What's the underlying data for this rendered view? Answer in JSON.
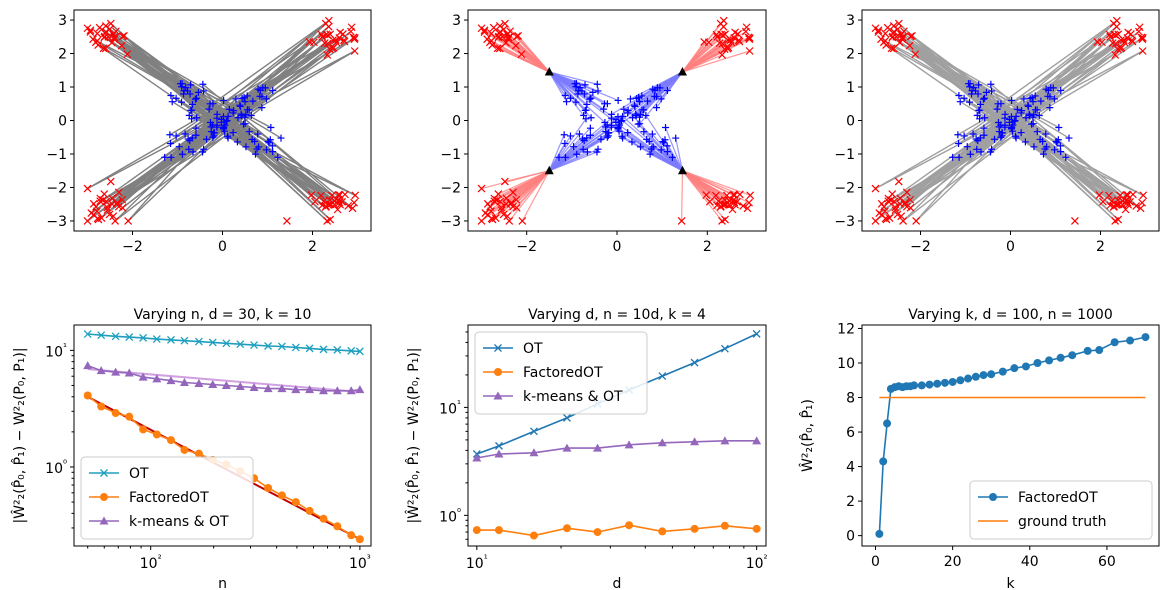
{
  "chart_data": [
    {
      "type": "scatter",
      "variant": "matching-lines",
      "xlim": [
        -3.3,
        3.3
      ],
      "ylim": [
        -3.3,
        3.3
      ],
      "xticks": [
        -2,
        0,
        2
      ],
      "yticks": [
        -3,
        -2,
        -1,
        0,
        1,
        2,
        3
      ],
      "xtick_labels": [
        "−2",
        "0",
        "2"
      ],
      "ytick_labels": [
        "−3",
        "−2",
        "−1",
        "0",
        "1",
        "2",
        "3"
      ],
      "line_color": "#808080",
      "source_color": "#0000ff",
      "target_color": "#ff0000",
      "anchors": [],
      "note": "blue '+' points near origin; red 'x' points in four corner clusters; each source matched to a corner point"
    },
    {
      "type": "scatter",
      "variant": "factored-lines",
      "xlim": [
        -3.3,
        3.3
      ],
      "ylim": [
        -3.3,
        3.3
      ],
      "xticks": [
        -2,
        0,
        2
      ],
      "yticks": [
        -3,
        -2,
        -1,
        0,
        1,
        2,
        3
      ],
      "xtick_labels": [
        "−2",
        "0",
        "2"
      ],
      "ytick_labels": [
        "−3",
        "−2",
        "−1",
        "0",
        "1",
        "2",
        "3"
      ],
      "line_color": "#7b7bff",
      "target_line_color": "#ff8080",
      "source_color": "#0000ff",
      "target_color": "#ff0000",
      "anchors": [
        [
          -1.5,
          1.45
        ],
        [
          1.45,
          1.45
        ],
        [
          -1.5,
          -1.5
        ],
        [
          1.45,
          -1.5
        ]
      ]
    },
    {
      "type": "scatter",
      "variant": "matching-lines-alt",
      "xlim": [
        -3.3,
        3.3
      ],
      "ylim": [
        -3.3,
        3.3
      ],
      "xticks": [
        -2,
        0,
        2
      ],
      "yticks": [
        -3,
        -2,
        -1,
        0,
        1,
        2,
        3
      ],
      "xtick_labels": [
        "−2",
        "0",
        "2"
      ],
      "ytick_labels": [
        "−3",
        "−2",
        "−1",
        "0",
        "1",
        "2",
        "3"
      ],
      "line_color": "#a0a0a0",
      "source_color": "#0000ff",
      "target_color": "#ff0000",
      "anchors": []
    },
    {
      "type": "line",
      "scale": "loglog",
      "title": "Varying n, d = 30, k = 10",
      "xlabel": "n",
      "ylabel": "|Ŵ²₂(P̂₀, P̂₁) − W²₂(P₀, P₁)|",
      "xlim": [
        43,
        1130
      ],
      "ylim": [
        0.21,
        16.5
      ],
      "xticks": [
        100,
        1000
      ],
      "xtick_labels": [
        "10²",
        "10³"
      ],
      "yticks": [
        1,
        10
      ],
      "ytick_labels": [
        "10⁰",
        "10¹"
      ],
      "legend_position": "lower-left",
      "x": [
        50,
        58,
        68,
        79,
        92,
        107,
        125,
        145,
        170,
        198,
        230,
        268,
        312,
        364,
        424,
        494,
        575,
        670,
        780,
        909,
        1000
      ],
      "series": [
        {
          "name": "OT",
          "color": "#1f9fbf",
          "marker": "x",
          "values": [
            13.8,
            13.5,
            13.2,
            13.0,
            12.8,
            12.5,
            12.3,
            12.1,
            11.9,
            11.7,
            11.5,
            11.3,
            11.1,
            10.9,
            10.8,
            10.6,
            10.4,
            10.2,
            10.1,
            9.9,
            9.8
          ]
        },
        {
          "name": "FactoredOT",
          "color": "#ff7f0e",
          "marker": "o",
          "values": [
            4.1,
            3.3,
            2.9,
            2.7,
            2.1,
            1.9,
            1.7,
            1.4,
            1.3,
            1.15,
            1.05,
            0.92,
            0.8,
            0.66,
            0.57,
            0.5,
            0.42,
            0.36,
            0.31,
            0.26,
            0.24
          ]
        },
        {
          "name": "k-means & OT",
          "color": "#9467bd",
          "marker": "^",
          "values": [
            7.4,
            6.7,
            6.5,
            6.4,
            5.9,
            5.7,
            5.5,
            5.3,
            5.2,
            5.1,
            5.0,
            4.9,
            4.8,
            4.7,
            4.7,
            4.6,
            4.6,
            4.5,
            4.5,
            4.5,
            4.6
          ]
        }
      ],
      "fit_lines": [
        {
          "color": "#c00000",
          "values": [
            4.0,
            0.24
          ]
        },
        {
          "color": "#d0a0e0",
          "values": [
            6.9,
            4.4
          ]
        }
      ]
    },
    {
      "type": "line",
      "scale": "loglog",
      "title": "Varying d, n = 10d, k = 4",
      "xlabel": "d",
      "ylabel": "|Ŵ²₂(P̂₀, P̂₁) − W²₂(P₀, P₁)|",
      "xlim": [
        9.3,
        108
      ],
      "ylim": [
        0.52,
        58
      ],
      "xticks": [
        10,
        100
      ],
      "xtick_labels": [
        "10¹",
        "10²"
      ],
      "yticks": [
        1,
        10
      ],
      "ytick_labels": [
        "10⁰",
        "10¹"
      ],
      "legend_position": "upper-left",
      "x": [
        10,
        12,
        16,
        21,
        27,
        35,
        46,
        60,
        77,
        100
      ],
      "series": [
        {
          "name": "OT",
          "color": "#1f77b4",
          "marker": "x",
          "values": [
            3.7,
            4.4,
            6.0,
            8.0,
            10.8,
            14.5,
            19.5,
            26.0,
            35.0,
            48.0
          ]
        },
        {
          "name": "FactoredOT",
          "color": "#ff7f0e",
          "marker": "o",
          "values": [
            0.73,
            0.73,
            0.65,
            0.76,
            0.7,
            0.81,
            0.71,
            0.75,
            0.8,
            0.75
          ]
        },
        {
          "name": "k-means & OT",
          "color": "#9467bd",
          "marker": "^",
          "values": [
            3.4,
            3.7,
            3.8,
            4.2,
            4.2,
            4.5,
            4.7,
            4.8,
            4.9,
            4.9
          ]
        }
      ]
    },
    {
      "type": "line",
      "scale": "linear",
      "title": "Varying k, d = 100, n = 1000",
      "xlabel": "k",
      "ylabel": "Ŵ²₂(P̂₀, P̂₁)",
      "xlim": [
        -3.5,
        73.5
      ],
      "ylim": [
        -0.6,
        12.2
      ],
      "xticks": [
        0,
        20,
        40,
        60
      ],
      "xtick_labels": [
        "0",
        "20",
        "40",
        "60"
      ],
      "yticks": [
        0,
        2,
        4,
        6,
        8,
        10,
        12
      ],
      "ytick_labels": [
        "0",
        "2",
        "4",
        "6",
        "8",
        "10",
        "12"
      ],
      "legend_position": "lower-right",
      "x": [
        1,
        2,
        3,
        4,
        5,
        6,
        7,
        8,
        9,
        10,
        12,
        14,
        16,
        18,
        20,
        22,
        24,
        26,
        28,
        30,
        33,
        36,
        39,
        42,
        45,
        48,
        51,
        55,
        58,
        62,
        66,
        70
      ],
      "series": [
        {
          "name": "FactoredOT",
          "color": "#1f77b4",
          "marker": "o",
          "values": [
            0.1,
            4.3,
            6.5,
            8.5,
            8.6,
            8.65,
            8.6,
            8.65,
            8.65,
            8.7,
            8.7,
            8.75,
            8.8,
            8.85,
            8.9,
            9.0,
            9.1,
            9.2,
            9.3,
            9.35,
            9.5,
            9.7,
            9.8,
            10.0,
            10.15,
            10.3,
            10.45,
            10.7,
            10.75,
            11.2,
            11.3,
            11.5
          ]
        },
        {
          "name": "ground truth",
          "color": "#ff7f0e",
          "marker": "none",
          "x": [
            1,
            70
          ],
          "values": [
            8.0,
            8.0
          ]
        }
      ]
    }
  ]
}
